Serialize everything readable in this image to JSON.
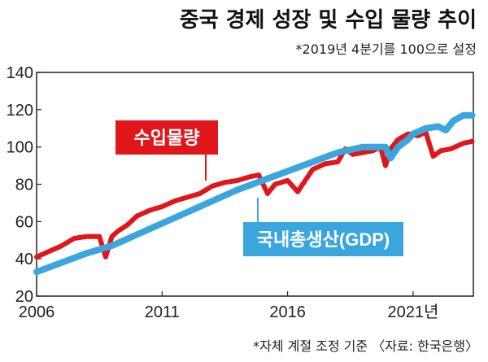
{
  "header": {
    "title": "중국 경제 성장 및 수입 물량 추이",
    "subtitle": "*2019년 4분기를 100으로 설정"
  },
  "footnote": "*자체 계절 조정 기준 〈자료: 한국은행〉",
  "colors": {
    "imports": "#e0161b",
    "gdp": "#3aa6dd",
    "axis": "#222222",
    "grid": "#ffffff"
  },
  "chart_data": {
    "type": "line",
    "title": "중국 경제 성장 및 수입 물량 추이",
    "subtitle": "*2019년 4분기를 100으로 설정",
    "xlabel": "",
    "ylabel": "",
    "xlim": [
      2006.0,
      2023.4
    ],
    "ylim": [
      20,
      140
    ],
    "yticks": [
      20,
      40,
      60,
      80,
      100,
      120,
      140
    ],
    "xticks": [
      2006,
      2011,
      2016,
      2021
    ],
    "xtick_labels": [
      "2006",
      "2011",
      "2016",
      "2021년"
    ],
    "grid": false,
    "series": [
      {
        "name": "수입물량",
        "color": "#e0161b",
        "x": [
          2006.0,
          2006.5,
          2007.0,
          2007.5,
          2008.0,
          2008.5,
          2008.75,
          2009.0,
          2009.25,
          2009.6,
          2010.0,
          2010.5,
          2011.0,
          2011.5,
          2012.0,
          2012.5,
          2013.0,
          2013.5,
          2014.0,
          2014.5,
          2014.85,
          2015.2,
          2015.5,
          2016.0,
          2016.4,
          2017.0,
          2017.5,
          2018.0,
          2018.3,
          2018.6,
          2019.0,
          2019.4,
          2019.7,
          2019.9,
          2020.1,
          2020.4,
          2020.8,
          2021.2,
          2021.5,
          2021.8,
          2022.1,
          2022.5,
          2023.0,
          2023.35
        ],
        "y": [
          41,
          44,
          47,
          51,
          52,
          52,
          41,
          52,
          55,
          58,
          63,
          66,
          68,
          71,
          73,
          75,
          79,
          81,
          82,
          84,
          85,
          75,
          80,
          82,
          76,
          88,
          91,
          92,
          99,
          96,
          97,
          98,
          100,
          90,
          99,
          104,
          107,
          106,
          108,
          95,
          98,
          99,
          102,
          103
        ]
      },
      {
        "name": "국내총생산(GDP)",
        "color": "#3aa6dd",
        "x": [
          2006.0,
          2007.0,
          2008.0,
          2009.0,
          2010.0,
          2011.0,
          2012.0,
          2013.0,
          2014.0,
          2015.0,
          2016.0,
          2017.0,
          2018.0,
          2019.0,
          2019.9,
          2020.1,
          2020.4,
          2020.8,
          2021.0,
          2021.5,
          2022.0,
          2022.3,
          2022.6,
          2023.0,
          2023.35
        ],
        "y": [
          33,
          38,
          43,
          47,
          53,
          59,
          65,
          71,
          77,
          82,
          87,
          92,
          97,
          100,
          100,
          94,
          100,
          104,
          107,
          110,
          111,
          109,
          114,
          117,
          117
        ]
      }
    ]
  }
}
